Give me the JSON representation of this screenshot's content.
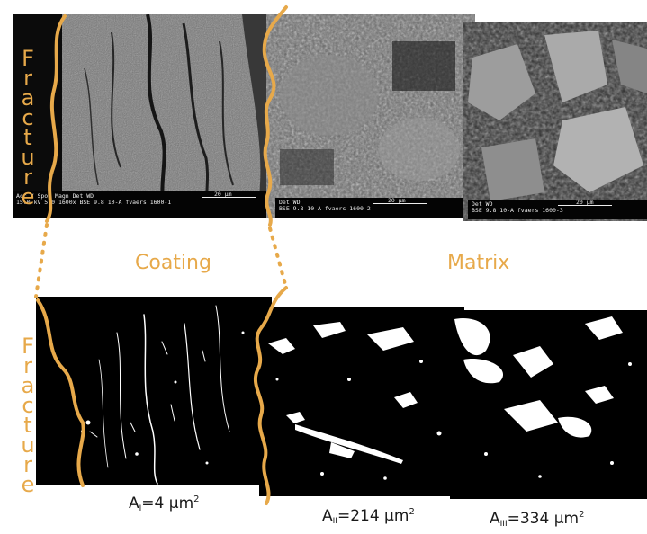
{
  "labels": {
    "fracture_top": [
      "F",
      "r",
      "a",
      "c",
      "t",
      "u",
      "r",
      "e"
    ],
    "fracture_bottom": [
      "F",
      "r",
      "a",
      "c",
      "t",
      "u",
      "r",
      "e"
    ],
    "coating": "Coating",
    "matrix": "Matrix"
  },
  "scalebars": {
    "panel1": {
      "line1": "Acc.V  Spot Magn   Det  WD",
      "line2": "15.0 kV 5.0  1600x   BSE  9.8   10-A fvaers 1600-1",
      "scale": "20 µm"
    },
    "panel2": {
      "line1": "Det  WD",
      "line2": "BSE  9.8   10-A fvaers 1600-2",
      "scale": "20 µm"
    },
    "panel3": {
      "line1": "Det  WD",
      "line2": "BSE  9.8   10-A fvaers 1600-3",
      "scale": "20 µm"
    }
  },
  "areas": {
    "a1": {
      "prefix": "A",
      "sub": "I",
      "value": "=4 µm",
      "sup": "2"
    },
    "a2": {
      "prefix": "A",
      "sub": "II",
      "value": "=214 µm",
      "sup": "2"
    },
    "a3": {
      "prefix": "A",
      "sub": "III",
      "value": "=334 µm",
      "sup": "2"
    }
  },
  "colors": {
    "outline": "#e7a94a",
    "sem_bg": "#5a5a5a",
    "binary_bg": "#000000"
  }
}
